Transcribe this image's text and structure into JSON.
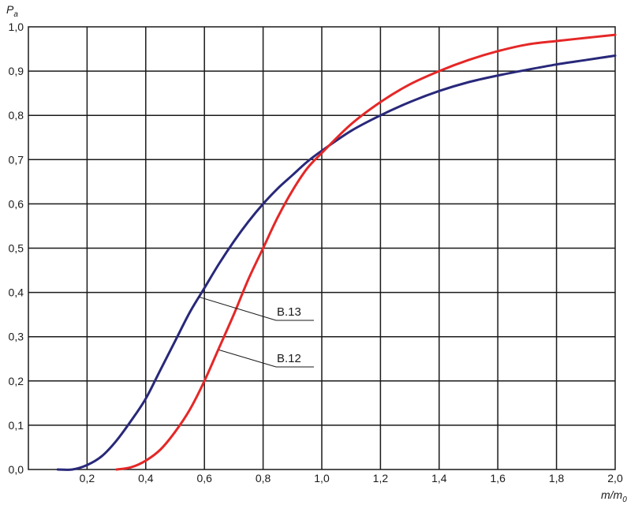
{
  "chart_data": {
    "type": "line",
    "ylabel": "P",
    "ylabel_sub": "a",
    "xlabel": "m/m",
    "xlabel_sub": "0",
    "xlim": [
      0.0,
      2.0
    ],
    "ylim": [
      0.0,
      1.0
    ],
    "grid": true,
    "x_ticks": [
      "0,2",
      "0,4",
      "0,6",
      "0,8",
      "1,0",
      "1,2",
      "1,4",
      "1,6",
      "1,8",
      "2,0"
    ],
    "y_ticks": [
      "0,0",
      "0,1",
      "0,2",
      "0,3",
      "0,4",
      "0,5",
      "0,6",
      "0,7",
      "0,8",
      "0,9",
      "1,0"
    ],
    "series": [
      {
        "name": "B.13",
        "color": "#28287a",
        "x": [
          0.1,
          0.15,
          0.2,
          0.25,
          0.3,
          0.35,
          0.4,
          0.45,
          0.5,
          0.55,
          0.6,
          0.65,
          0.7,
          0.75,
          0.8,
          0.85,
          0.9,
          0.95,
          1.0,
          1.1,
          1.2,
          1.3,
          1.4,
          1.5,
          1.6,
          1.7,
          1.8,
          1.9,
          2.0
        ],
        "values": [
          0.0,
          0.0,
          0.01,
          0.03,
          0.065,
          0.11,
          0.16,
          0.225,
          0.29,
          0.355,
          0.41,
          0.465,
          0.515,
          0.56,
          0.6,
          0.635,
          0.665,
          0.695,
          0.72,
          0.765,
          0.8,
          0.83,
          0.855,
          0.875,
          0.89,
          0.903,
          0.915,
          0.925,
          0.935
        ],
        "label_at": {
          "x": 0.58,
          "y": 0.39
        }
      },
      {
        "name": "B.12",
        "color": "#e52727",
        "x": [
          0.3,
          0.35,
          0.4,
          0.45,
          0.5,
          0.55,
          0.6,
          0.65,
          0.7,
          0.75,
          0.8,
          0.85,
          0.9,
          0.95,
          1.0,
          1.1,
          1.2,
          1.3,
          1.4,
          1.5,
          1.6,
          1.7,
          1.8,
          1.9,
          2.0
        ],
        "values": [
          0.0,
          0.005,
          0.02,
          0.045,
          0.085,
          0.135,
          0.2,
          0.275,
          0.35,
          0.43,
          0.5,
          0.57,
          0.63,
          0.68,
          0.715,
          0.78,
          0.83,
          0.87,
          0.9,
          0.925,
          0.945,
          0.96,
          0.968,
          0.975,
          0.982
        ],
        "label_at": {
          "x": 0.65,
          "y": 0.27
        }
      }
    ],
    "annotations": [
      {
        "text": "B.13",
        "series": "B.13"
      },
      {
        "text": "B.12",
        "series": "B.12"
      }
    ]
  }
}
